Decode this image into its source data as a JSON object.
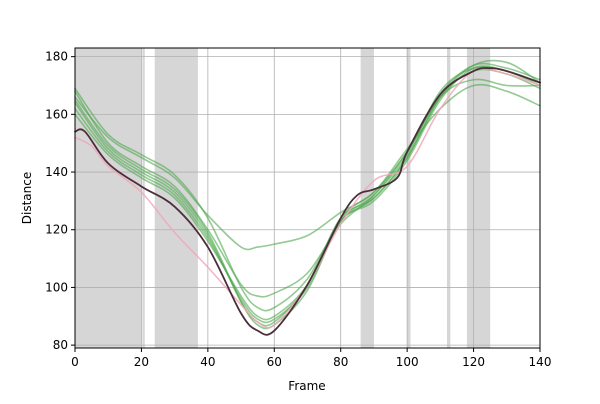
{
  "chart_data": {
    "type": "line",
    "title": "",
    "xlabel": "Frame",
    "ylabel": "Distance",
    "xlim": [
      0,
      140
    ],
    "ylim": [
      79,
      183
    ],
    "grid": true,
    "x_ticks": [
      0,
      20,
      40,
      60,
      80,
      100,
      120,
      140
    ],
    "y_ticks": [
      80,
      100,
      120,
      140,
      160,
      180
    ],
    "shaded_regions": [
      [
        0,
        20
      ],
      [
        20.3,
        21
      ],
      [
        24,
        37
      ],
      [
        86,
        90
      ],
      [
        100,
        101
      ],
      [
        112,
        113
      ],
      [
        118,
        125
      ]
    ],
    "colors": {
      "shade": "#d6d6d6",
      "grid": "#b0b0b0",
      "green": "#4ca64c",
      "pink": "#f2a6b8",
      "dark": "#4a2f3a"
    },
    "series": [
      {
        "style": "green",
        "x": [
          0,
          10,
          20,
          30,
          40,
          50,
          55,
          60,
          70,
          80,
          90,
          100,
          110,
          120,
          130,
          140
        ],
        "y": [
          168,
          150,
          142,
          135,
          120,
          101,
          97,
          98,
          105,
          122,
          132,
          147,
          166,
          172,
          170,
          170
        ]
      },
      {
        "style": "green",
        "x": [
          0,
          10,
          20,
          30,
          40,
          50,
          55,
          60,
          70,
          80,
          90,
          100,
          110,
          120,
          130,
          140
        ],
        "y": [
          166,
          152,
          145,
          138,
          125,
          114,
          114,
          115,
          118,
          126,
          133,
          148,
          162,
          170,
          168,
          163
        ]
      },
      {
        "style": "green",
        "x": [
          0,
          10,
          20,
          30,
          40,
          50,
          55,
          60,
          70,
          80,
          90,
          100,
          110,
          120,
          130,
          140
        ],
        "y": [
          164,
          148,
          140,
          133,
          118,
          95,
          88,
          88,
          101,
          124,
          133,
          147,
          167,
          177,
          176,
          172
        ]
      },
      {
        "style": "green",
        "x": [
          0,
          10,
          20,
          30,
          40,
          50,
          55,
          60,
          70,
          80,
          90,
          100,
          110,
          120,
          130,
          140
        ],
        "y": [
          169,
          153,
          146,
          139,
          124,
          100,
          93,
          93,
          103,
          123,
          131,
          145,
          166,
          177,
          178,
          171
        ]
      },
      {
        "style": "green",
        "x": [
          0,
          10,
          20,
          30,
          40,
          50,
          55,
          60,
          70,
          80,
          90,
          100,
          110,
          120,
          130,
          140
        ],
        "y": [
          162,
          147,
          139,
          132,
          117,
          96,
          89,
          89,
          100,
          123,
          130,
          144,
          165,
          176,
          175,
          170
        ]
      },
      {
        "style": "green",
        "x": [
          0,
          10,
          20,
          30,
          40,
          50,
          55,
          60,
          70,
          80,
          90,
          100,
          110,
          120,
          130,
          140
        ],
        "y": [
          160,
          146,
          138,
          131,
          116,
          97,
          90,
          90,
          101,
          124,
          131,
          145,
          166,
          175,
          174,
          169
        ]
      },
      {
        "style": "green",
        "x": [
          0,
          10,
          20,
          30,
          40,
          50,
          55,
          60,
          70,
          80,
          90,
          100,
          110,
          120,
          130,
          140
        ],
        "y": [
          165,
          149,
          141,
          134,
          119,
          95,
          87,
          87,
          99,
          123,
          132,
          146,
          168,
          176,
          175,
          171
        ]
      },
      {
        "style": "pink",
        "x": [
          0,
          5,
          10,
          20,
          30,
          40,
          50,
          55,
          60,
          70,
          80,
          90,
          100,
          110,
          120,
          130,
          140
        ],
        "y": [
          152,
          149,
          142,
          133,
          119,
          107,
          94,
          88,
          87,
          101,
          122,
          137,
          142,
          162,
          175,
          174,
          170
        ]
      },
      {
        "style": "dark",
        "x": [
          0,
          3,
          10,
          20,
          30,
          40,
          50,
          55,
          60,
          70,
          80,
          85,
          90,
          97,
          100,
          110,
          120,
          125,
          130,
          140
        ],
        "y": [
          154,
          154,
          143,
          135,
          128,
          114,
          91,
          85,
          85,
          101,
          124,
          132,
          134,
          138,
          147,
          167,
          175,
          176,
          175,
          171
        ]
      }
    ]
  }
}
